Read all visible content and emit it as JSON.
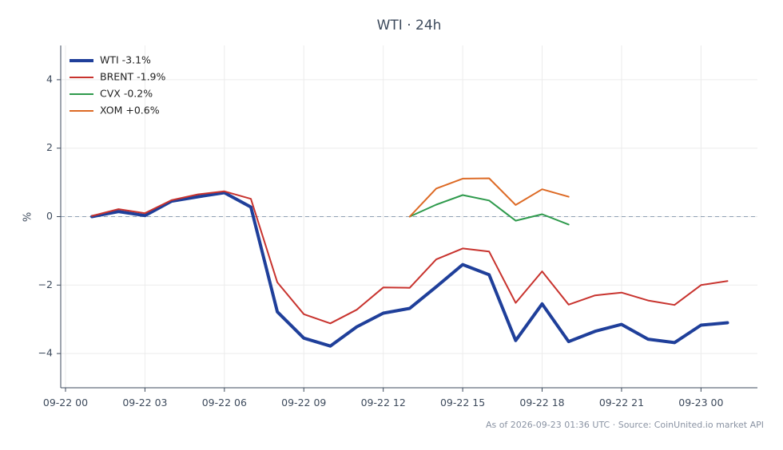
{
  "chart_data": {
    "type": "line",
    "title": "WTI · 24h",
    "xlabel": "",
    "ylabel": "%",
    "x": [
      "09-22 01",
      "09-22 02",
      "09-22 03",
      "09-22 04",
      "09-22 05",
      "09-22 06",
      "09-22 07",
      "09-22 08",
      "09-22 09",
      "09-22 10",
      "09-22 11",
      "09-22 12",
      "09-22 13",
      "09-22 14",
      "09-22 15",
      "09-22 16",
      "09-22 17",
      "09-22 18",
      "09-22 19",
      "09-22 20",
      "09-22 21",
      "09-22 22",
      "09-22 23",
      "09-23 00",
      "09-23 01"
    ],
    "x_ticks": [
      "09-22 00",
      "09-22 03",
      "09-22 06",
      "09-22 09",
      "09-22 12",
      "09-22 15",
      "09-22 18",
      "09-22 21",
      "09-23 00"
    ],
    "y_ticks": [
      "4",
      "2",
      "0",
      "−2",
      "−4"
    ],
    "ylim": [
      -5,
      5
    ],
    "zero_line": true,
    "grid": true,
    "legend_position": "top-left",
    "series": [
      {
        "name": "WTI -3.1%",
        "color": "#1f3f9a",
        "width": 4,
        "values": [
          0.0,
          0.15,
          0.03,
          0.45,
          0.58,
          0.7,
          0.28,
          -2.78,
          -3.55,
          -3.78,
          -3.22,
          -2.82,
          -2.68,
          -2.05,
          -1.4,
          -1.7,
          -3.62,
          -2.55,
          -3.65,
          -3.35,
          -3.15,
          -3.58,
          -3.68,
          -3.17,
          -3.1
        ]
      },
      {
        "name": "BRENT -1.9%",
        "color": "#c8332e",
        "width": 2,
        "values": [
          0.02,
          0.22,
          0.1,
          0.48,
          0.65,
          0.74,
          0.52,
          -1.92,
          -2.85,
          -3.12,
          -2.72,
          -2.07,
          -2.08,
          -1.25,
          -0.93,
          -1.02,
          -2.52,
          -1.6,
          -2.57,
          -2.3,
          -2.22,
          -2.45,
          -2.58,
          -2.0,
          -1.88
        ]
      },
      {
        "name": "CVX -0.2%",
        "color": "#2e9a4c",
        "width": 2,
        "values": [
          null,
          null,
          null,
          null,
          null,
          null,
          null,
          null,
          null,
          null,
          null,
          null,
          0.0,
          0.35,
          0.63,
          0.47,
          -0.12,
          0.07,
          -0.23,
          null,
          null,
          null,
          null,
          null,
          null
        ]
      },
      {
        "name": "XOM +0.6%",
        "color": "#dd6a25",
        "width": 2,
        "values": [
          null,
          null,
          null,
          null,
          null,
          null,
          null,
          null,
          null,
          null,
          null,
          null,
          0.0,
          0.82,
          1.11,
          1.12,
          0.34,
          0.8,
          0.58,
          null,
          null,
          null,
          null,
          null,
          null
        ]
      }
    ]
  },
  "footer": "As of 2026-09-23 01:36 UTC · Source: CoinUnited.io market API"
}
